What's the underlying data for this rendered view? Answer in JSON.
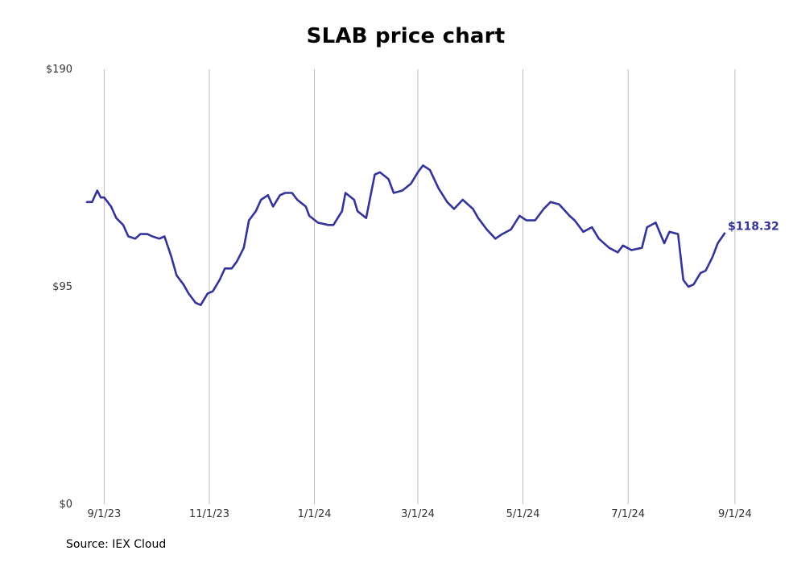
{
  "chart_data": {
    "type": "line",
    "title": "SLAB price chart",
    "xlabel": "",
    "ylabel": "",
    "ylim": [
      0,
      190
    ],
    "y_ticks": [
      {
        "value": 0,
        "label": "$0"
      },
      {
        "value": 95,
        "label": "$95"
      },
      {
        "value": 190,
        "label": "$190"
      }
    ],
    "x_ticks": [
      {
        "date": "2023-09-01",
        "label": "9/1/23"
      },
      {
        "date": "2023-11-01",
        "label": "11/1/23"
      },
      {
        "date": "2024-01-01",
        "label": "1/1/24"
      },
      {
        "date": "2024-03-01",
        "label": "3/1/24"
      },
      {
        "date": "2024-05-01",
        "label": "5/1/24"
      },
      {
        "date": "2024-07-01",
        "label": "7/1/24"
      },
      {
        "date": "2024-09-01",
        "label": "9/1/24"
      }
    ],
    "xlim": [
      "2023-08-22",
      "2024-09-09"
    ],
    "grid": {
      "vertical": true,
      "horizontal": false
    },
    "line_color": "#333399",
    "last_value_label": "$118.32",
    "series": [
      {
        "x": [
          "2023-08-22",
          "2023-08-25",
          "2023-08-28",
          "2023-08-30",
          "2023-09-01",
          "2023-09-05",
          "2023-09-08",
          "2023-09-12",
          "2023-09-15",
          "2023-09-19",
          "2023-09-22",
          "2023-09-26",
          "2023-09-29",
          "2023-10-03",
          "2023-10-06",
          "2023-10-10",
          "2023-10-13",
          "2023-10-17",
          "2023-10-20",
          "2023-10-24",
          "2023-10-27",
          "2023-10-31",
          "2023-11-03",
          "2023-11-07",
          "2023-11-10",
          "2023-11-14",
          "2023-11-17",
          "2023-11-21",
          "2023-11-24",
          "2023-11-28",
          "2023-12-01",
          "2023-12-05",
          "2023-12-08",
          "2023-12-12",
          "2023-12-15",
          "2023-12-19",
          "2023-12-22",
          "2023-12-27",
          "2023-12-29",
          "2024-01-03",
          "2024-01-09",
          "2024-01-12",
          "2024-01-17",
          "2024-01-19",
          "2024-01-24",
          "2024-01-26",
          "2024-01-31",
          "2024-02-05",
          "2024-02-08",
          "2024-02-13",
          "2024-02-16",
          "2024-02-21",
          "2024-02-26",
          "2024-03-01",
          "2024-03-04",
          "2024-03-08",
          "2024-03-13",
          "2024-03-18",
          "2024-03-22",
          "2024-03-27",
          "2024-04-02",
          "2024-04-05",
          "2024-04-10",
          "2024-04-15",
          "2024-04-19",
          "2024-04-24",
          "2024-04-29",
          "2024-05-03",
          "2024-05-08",
          "2024-05-13",
          "2024-05-17",
          "2024-05-22",
          "2024-05-28",
          "2024-05-31",
          "2024-06-05",
          "2024-06-10",
          "2024-06-14",
          "2024-06-20",
          "2024-06-25",
          "2024-06-28",
          "2024-07-03",
          "2024-07-09",
          "2024-07-12",
          "2024-07-17",
          "2024-07-22",
          "2024-07-25",
          "2024-07-30",
          "2024-08-02",
          "2024-08-05",
          "2024-08-08",
          "2024-08-12",
          "2024-08-15",
          "2024-08-19",
          "2024-08-22",
          "2024-08-26"
        ],
        "y": [
          132,
          132,
          137,
          134,
          134,
          130,
          125,
          122,
          117,
          116,
          118,
          118,
          117,
          116,
          117,
          108,
          100,
          96,
          92,
          88,
          87,
          92,
          93,
          98,
          103,
          103,
          106,
          112,
          124,
          128,
          133,
          135,
          130,
          135,
          136,
          136,
          133,
          130,
          126,
          123,
          122,
          122,
          128,
          136,
          133,
          128,
          125,
          144,
          145,
          142,
          136,
          137,
          140,
          145,
          148,
          146,
          138,
          132,
          129,
          133,
          129,
          125,
          120,
          116,
          118,
          120,
          126,
          124,
          124,
          129,
          132,
          131,
          126,
          124,
          119,
          121,
          116,
          112,
          110,
          113,
          111,
          112,
          121,
          123,
          114,
          119,
          118,
          98,
          95,
          96,
          101,
          102,
          108,
          114,
          118.32
        ]
      }
    ]
  },
  "footer": {
    "source": "Source: IEX Cloud"
  }
}
